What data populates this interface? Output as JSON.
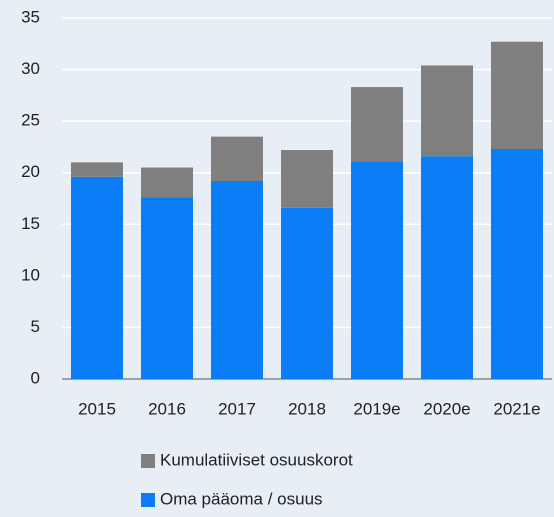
{
  "chart_data": {
    "type": "stacked_bar",
    "categories": [
      "2015",
      "2016",
      "2017",
      "2018",
      "2019e",
      "2020e",
      "2021e"
    ],
    "series": [
      {
        "name": "Oma pääoma / osuus",
        "color": "#0a7cf5",
        "values": [
          19.6,
          17.6,
          19.2,
          16.6,
          21.1,
          21.6,
          22.3
        ]
      },
      {
        "name": "Kumulatiiviset osuuskorot",
        "color": "#7f7f7f",
        "values": [
          1.4,
          2.9,
          4.3,
          5.6,
          7.2,
          8.8,
          10.4
        ]
      }
    ],
    "ylim": [
      0,
      35
    ],
    "yticks": [
      0,
      5,
      10,
      15,
      20,
      25,
      30,
      35
    ],
    "grid": true
  }
}
